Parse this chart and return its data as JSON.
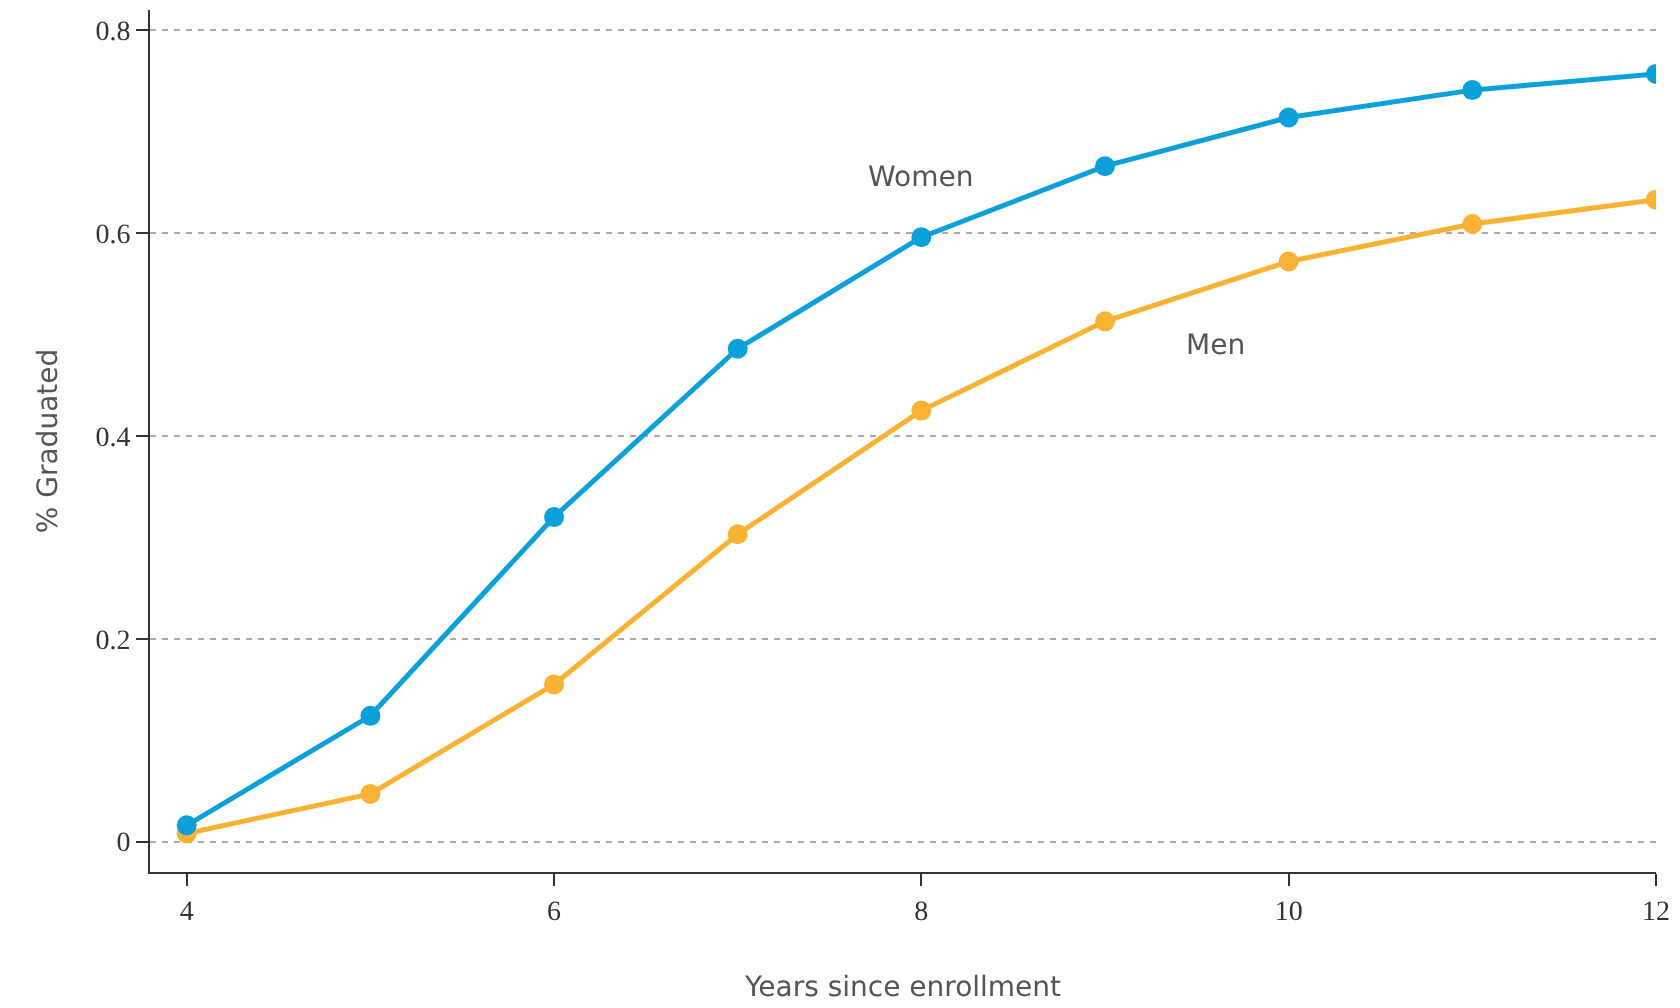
{
  "chart_data": {
    "type": "line",
    "xlabel": "Years since enrollment",
    "ylabel": "% Graduated",
    "x": [
      4,
      5,
      6,
      7,
      8,
      9,
      10,
      11,
      12
    ],
    "series": [
      {
        "name": "Women",
        "color": "#0ba0d9",
        "values": [
          0.016,
          0.124,
          0.32,
          0.486,
          0.596,
          0.666,
          0.714,
          0.741,
          0.757
        ]
      },
      {
        "name": "Men",
        "color": "#f9b233",
        "values": [
          0.008,
          0.047,
          0.155,
          0.303,
          0.425,
          0.513,
          0.572,
          0.609,
          0.633
        ]
      }
    ],
    "xlim": [
      3.8,
      12
    ],
    "xticks": [
      4,
      6,
      8,
      10,
      12
    ],
    "ylim": [
      -0.03,
      0.82
    ],
    "yticks": [
      {
        "value": 0,
        "label": "0"
      },
      0.2,
      0.4,
      0.6,
      0.8
    ],
    "grid": "y",
    "legend": false,
    "marker": "circle",
    "line_style": "solid"
  }
}
